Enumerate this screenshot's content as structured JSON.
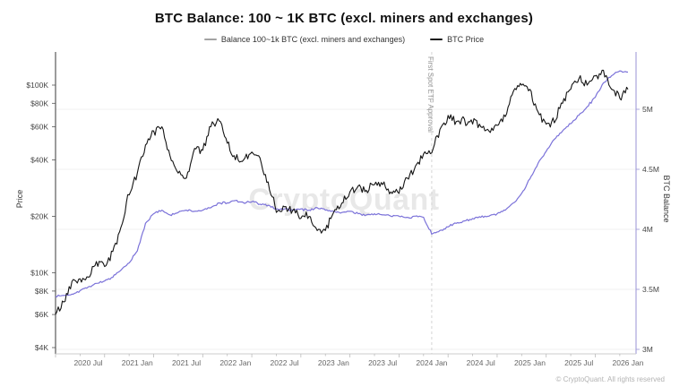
{
  "header": {
    "title": "BTC Balance: 100 ~ 1K BTC (excl. miners and exchanges)"
  },
  "legend": [
    {
      "label": "Balance 100~1k BTC (excl. miners and exchanges)",
      "color": "#a3a3a3"
    },
    {
      "label": "BTC Price",
      "color": "#1a1a1a"
    }
  ],
  "watermark": "CryptoQuant",
  "footer": "© CryptoQuant. All rights reserved",
  "annotation": {
    "label": "First Spot ETF Approval",
    "month": "2024-01"
  },
  "chart_data": {
    "type": "line",
    "title": "BTC Balance: 100 ~ 1K BTC (excl. miners and exchanges)",
    "x_start": "2020-03",
    "x_end": "2026-01",
    "x_interval": "monthly",
    "x_ticks": [
      {
        "label": "2020 Jul",
        "month": "2020-07"
      },
      {
        "label": "2021 Jan",
        "month": "2021-01"
      },
      {
        "label": "2021 Jul",
        "month": "2021-07"
      },
      {
        "label": "2022 Jan",
        "month": "2022-01"
      },
      {
        "label": "2022 Jul",
        "month": "2022-07"
      },
      {
        "label": "2023 Jan",
        "month": "2023-01"
      },
      {
        "label": "2023 Jul",
        "month": "2023-07"
      },
      {
        "label": "2024 Jan",
        "month": "2024-01"
      },
      {
        "label": "2024 Jul",
        "month": "2024-07"
      },
      {
        "label": "2025 Jan",
        "month": "2025-01"
      },
      {
        "label": "2025 Jul",
        "month": "2025-07"
      },
      {
        "label": "2026 Jan",
        "month": "2026-01"
      }
    ],
    "left_axis": {
      "label": "Price",
      "scale": "log",
      "unit": "USD",
      "ticks": [
        "$4K",
        "$6K",
        "$8K",
        "$10K",
        "$20K",
        "$40K",
        "$60K",
        "$80K",
        "$100K"
      ],
      "tick_values_k": [
        4,
        6,
        8,
        10,
        20,
        40,
        60,
        80,
        100
      ],
      "domain_k": [
        3.7,
        147
      ]
    },
    "right_axis": {
      "label": "BTC Balance",
      "scale": "linear",
      "unit": "BTC",
      "ticks": [
        "3M",
        "3.5M",
        "4M",
        "4.5M",
        "5M"
      ],
      "tick_values_m": [
        3,
        3.5,
        4,
        4.5,
        5
      ],
      "domain_m": [
        2.96,
        5.48
      ]
    },
    "grid": "horizontal-on-right-axis-ticks",
    "legend_position": "top-center",
    "series": [
      {
        "name": "Balance 100~1k BTC (excl. miners and exchanges)",
        "axis": "right",
        "color": "#7b72d9",
        "unit": "million BTC",
        "values": [
          3.44,
          3.45,
          3.46,
          3.49,
          3.52,
          3.55,
          3.57,
          3.6,
          3.66,
          3.72,
          3.82,
          4.05,
          4.13,
          4.16,
          4.12,
          4.14,
          4.16,
          4.15,
          4.16,
          4.18,
          4.22,
          4.22,
          4.24,
          4.22,
          4.23,
          4.21,
          4.2,
          4.17,
          4.17,
          4.16,
          4.17,
          4.16,
          4.18,
          4.16,
          4.15,
          4.14,
          4.15,
          4.13,
          4.12,
          4.13,
          4.12,
          4.11,
          4.11,
          4.1,
          4.11,
          4.1,
          3.96,
          3.99,
          4.02,
          4.05,
          4.07,
          4.09,
          4.1,
          4.11,
          4.13,
          4.16,
          4.22,
          4.3,
          4.42,
          4.55,
          4.65,
          4.75,
          4.82,
          4.88,
          4.95,
          5.02,
          5.1,
          5.22,
          5.28,
          5.32,
          5.31
        ]
      },
      {
        "name": "BTC Price",
        "axis": "left",
        "color": "#141414",
        "unit": "thousand USD",
        "values": [
          6.0,
          7.0,
          9.0,
          9.3,
          9.5,
          11.5,
          10.8,
          13.0,
          17.5,
          26,
          34,
          48,
          57,
          60,
          42,
          34,
          32,
          46,
          45,
          60,
          64.5,
          49,
          40,
          40,
          44,
          41,
          30.5,
          21,
          22.5,
          21.5,
          19.5,
          20,
          16.8,
          16.8,
          21,
          23.5,
          27,
          29,
          27.5,
          29.5,
          29.5,
          27,
          26.5,
          32,
          37,
          43,
          43.5,
          58,
          69,
          64,
          66,
          62,
          60,
          57,
          61,
          68,
          93,
          100,
          95,
          72,
          62,
          63,
          80,
          95,
          108,
          100,
          112,
          120,
          95,
          85,
          95
        ]
      }
    ]
  }
}
